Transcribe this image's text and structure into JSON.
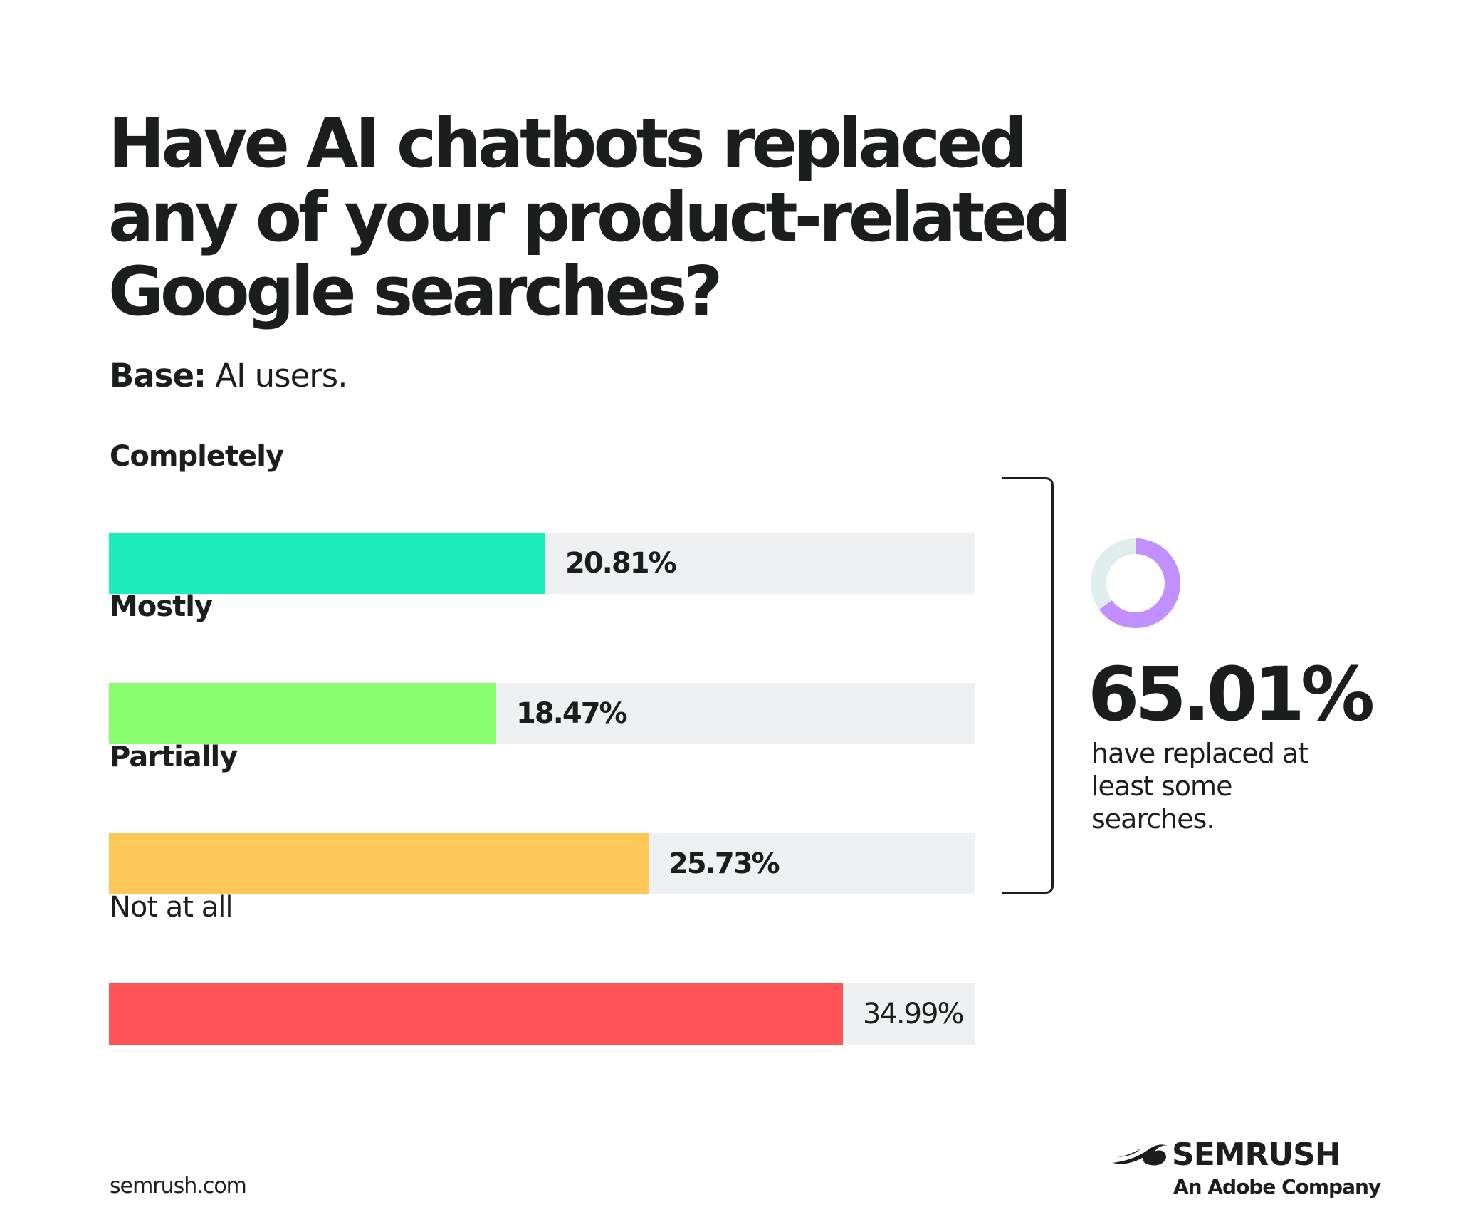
{
  "title": "Have AI chatbots replaced any of your product-related Google searches?",
  "base": {
    "label": "Base:",
    "value": "AI users."
  },
  "chart_data": {
    "type": "bar",
    "orientation": "horizontal",
    "categories": [
      "Completely",
      "Mostly",
      "Partially",
      "Not at all"
    ],
    "values": [
      20.81,
      18.47,
      25.73,
      34.99
    ],
    "value_labels": [
      "20.81%",
      "18.47%",
      "25.73%",
      "34.99%"
    ],
    "colors": [
      "#1bedbc",
      "#88ff6f",
      "#fdc858",
      "#ff5457"
    ],
    "track_color": "#eff0f2",
    "xlim": [
      0,
      41.3
    ],
    "grid": false
  },
  "summary": {
    "value": 65.01,
    "value_label": "65.01%",
    "text": "have replaced at least some searches.",
    "donut_colors": {
      "fill": "#c18fff",
      "track": "#dfeeec"
    }
  },
  "footer": {
    "url": "semrush.com"
  },
  "logo": {
    "name": "SEMRUSH",
    "subtitle": "An Adobe Company",
    "icon": "semrush-comet-icon"
  }
}
